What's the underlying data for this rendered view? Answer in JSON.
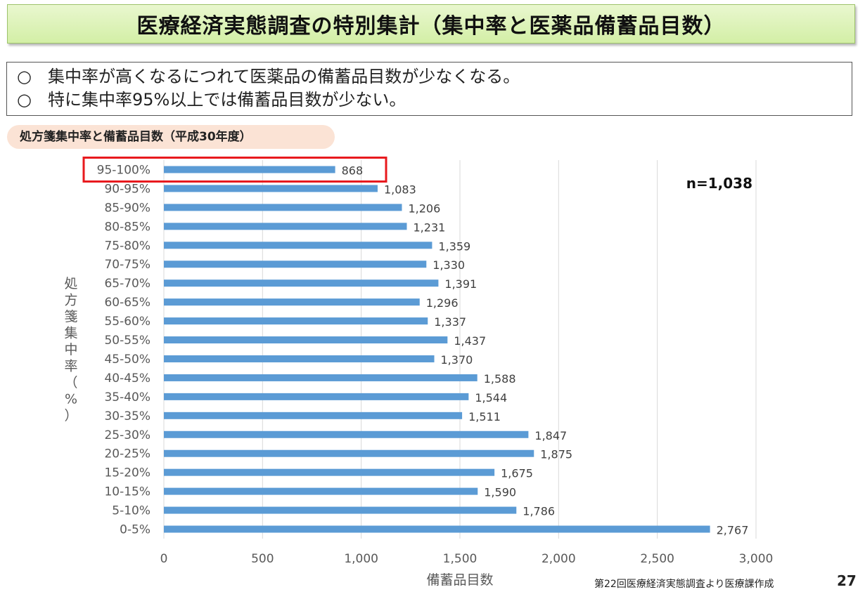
{
  "page_title": "医療経済実態調査の特別集計（集中率と医薬品備蓄品目数）",
  "summary": {
    "bullet": "○",
    "lines": [
      "集中率が高くなるにつれて医薬品の備蓄品目数が少なくなる。",
      "特に集中率95%以上では備蓄品目数が少ない。"
    ]
  },
  "chart_tag": "処方箋集中率と備蓄品目数（平成30年度）",
  "source_note": "第22回医療経済実態調査より医療課作成",
  "page_number": "27",
  "colors": {
    "bar": "#5b9bd5",
    "highlight": "#e8191d",
    "grid": "#d9d9d9",
    "title_bg": "#d8f0b0"
  },
  "chart_data": {
    "type": "bar",
    "orientation": "horizontal",
    "title": "",
    "ylabel": "処方箋集中率（%）",
    "xlabel": "備蓄品目数",
    "annotation": "n=1,038",
    "highlighted_category": "95-100%",
    "categories": [
      "95-100%",
      "90-95%",
      "85-90%",
      "80-85%",
      "75-80%",
      "70-75%",
      "65-70%",
      "60-65%",
      "55-60%",
      "50-55%",
      "45-50%",
      "40-45%",
      "35-40%",
      "30-35%",
      "25-30%",
      "20-25%",
      "15-20%",
      "10-15%",
      "5-10%",
      "0-5%"
    ],
    "values": [
      868,
      1083,
      1206,
      1231,
      1359,
      1330,
      1391,
      1296,
      1337,
      1437,
      1370,
      1588,
      1544,
      1511,
      1847,
      1875,
      1675,
      1590,
      1786,
      2767
    ],
    "value_labels": [
      "868",
      "1,083",
      "1,206",
      "1,231",
      "1,359",
      "1,330",
      "1,391",
      "1,296",
      "1,337",
      "1,437",
      "1,370",
      "1,588",
      "1,544",
      "1,511",
      "1,847",
      "1,875",
      "1,675",
      "1,590",
      "1,786",
      "2,767"
    ],
    "xlim": [
      0,
      3000
    ],
    "xticks": [
      0,
      500,
      1000,
      1500,
      2000,
      2500,
      3000
    ],
    "xtick_labels": [
      "0",
      "500",
      "1,000",
      "1,500",
      "2,000",
      "2,500",
      "3,000"
    ],
    "grid": true,
    "legend": "none"
  }
}
